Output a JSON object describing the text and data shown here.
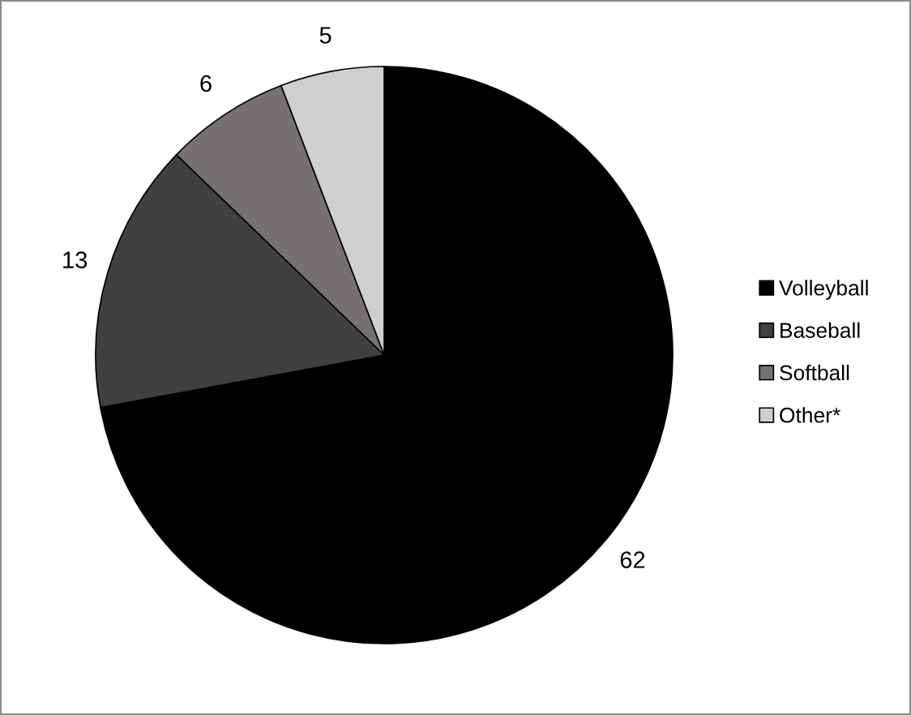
{
  "chart_data": {
    "type": "pie",
    "categories": [
      "Volleyball",
      "Baseball",
      "Softball",
      "Other*"
    ],
    "values": [
      62,
      13,
      6,
      5
    ],
    "colors": [
      "#000000",
      "#404040",
      "#767171",
      "#d0cece"
    ],
    "data_labels": true,
    "legend": "right"
  }
}
